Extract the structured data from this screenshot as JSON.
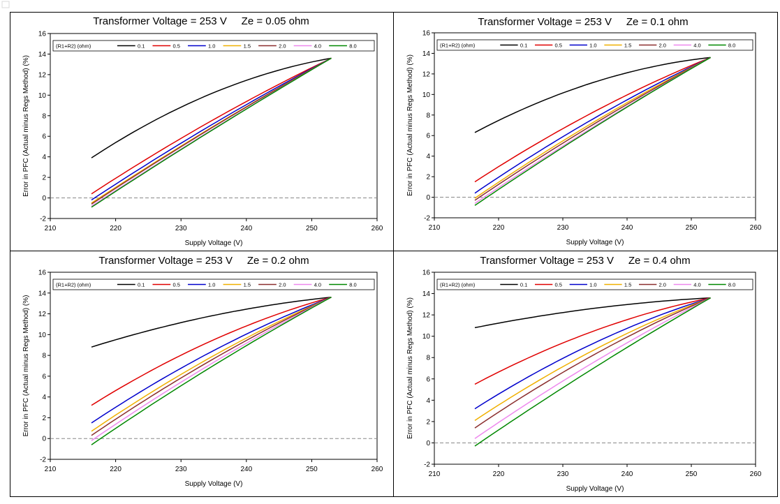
{
  "figure": {
    "xlabel": "Supply Voltage (V)",
    "ylabel": "Error in PFC (Actual minus Regs Method) (%)",
    "legend_title": "(R1+R2) (ohm)",
    "xlim": [
      210,
      260
    ],
    "ylim": [
      -2,
      16
    ],
    "x_ticks": [
      210,
      220,
      230,
      240,
      250,
      260
    ],
    "y_ticks": [
      -2,
      0,
      2,
      4,
      6,
      8,
      10,
      12,
      14,
      16
    ],
    "series_colors": {
      "0.1": "#000000",
      "0.5": "#e00000",
      "1.0": "#0000cc",
      "1.5": "#f0b000",
      "2.0": "#8b2e2e",
      "4.0": "#ee88ee",
      "8.0": "#008800"
    },
    "reference_line_color": "#888888"
  },
  "chart_data": [
    {
      "type": "line",
      "title": "Transformer Voltage = 253 V     Ze = 0.05 ohm",
      "xlabel": "Supply Voltage (V)",
      "ylabel": "Error in PFC (Actual minus Regs Method) (%)",
      "xlim": [
        210,
        260
      ],
      "ylim": [
        -2,
        16
      ],
      "x_start": 216.3,
      "x_end": 253,
      "legend_title": "(R1+R2) (ohm)",
      "series": [
        {
          "name": "0.1",
          "start": 3.9,
          "end": 13.6,
          "curve": 1.4
        },
        {
          "name": "0.5",
          "start": 0.4,
          "end": 13.6,
          "curve": 0.5
        },
        {
          "name": "1.0",
          "start": -0.2,
          "end": 13.6,
          "curve": 0.4
        },
        {
          "name": "1.5",
          "start": -0.5,
          "end": 13.6,
          "curve": 0.3
        },
        {
          "name": "2.0",
          "start": -0.6,
          "end": 13.6,
          "curve": 0.3
        },
        {
          "name": "4.0",
          "start": -0.8,
          "end": 13.6,
          "curve": 0.2
        },
        {
          "name": "8.0",
          "start": -0.9,
          "end": 13.6,
          "curve": 0.2
        }
      ]
    },
    {
      "type": "line",
      "title": "Transformer Voltage = 253 V     Ze = 0.1 ohm",
      "xlabel": "Supply Voltage (V)",
      "ylabel": "Error in PFC (Actual minus Regs Method) (%)",
      "xlim": [
        210,
        260
      ],
      "ylim": [
        -2,
        16
      ],
      "x_start": 216.3,
      "x_end": 253,
      "legend_title": "(R1+R2) (ohm)",
      "series": [
        {
          "name": "0.1",
          "start": 6.3,
          "end": 13.6,
          "curve": 1.2
        },
        {
          "name": "0.5",
          "start": 1.5,
          "end": 13.6,
          "curve": 0.7
        },
        {
          "name": "1.0",
          "start": 0.4,
          "end": 13.6,
          "curve": 0.6
        },
        {
          "name": "1.5",
          "start": -0.1,
          "end": 13.6,
          "curve": 0.5
        },
        {
          "name": "2.0",
          "start": -0.3,
          "end": 13.6,
          "curve": 0.4
        },
        {
          "name": "4.0",
          "start": -0.6,
          "end": 13.6,
          "curve": 0.3
        },
        {
          "name": "8.0",
          "start": -0.8,
          "end": 13.6,
          "curve": 0.3
        }
      ]
    },
    {
      "type": "line",
      "title": "Transformer Voltage = 253 V     Ze = 0.2 ohm",
      "xlabel": "Supply Voltage (V)",
      "ylabel": "Error in PFC (Actual minus Regs Method) (%)",
      "xlim": [
        210,
        260
      ],
      "ylim": [
        -2,
        16
      ],
      "x_start": 216.3,
      "x_end": 253,
      "legend_title": "(R1+R2) (ohm)",
      "series": [
        {
          "name": "0.1",
          "start": 8.8,
          "end": 13.6,
          "curve": 0.6
        },
        {
          "name": "0.5",
          "start": 3.2,
          "end": 13.6,
          "curve": 1.0
        },
        {
          "name": "1.0",
          "start": 1.5,
          "end": 13.6,
          "curve": 0.8
        },
        {
          "name": "1.5",
          "start": 0.7,
          "end": 13.6,
          "curve": 0.7
        },
        {
          "name": "2.0",
          "start": 0.3,
          "end": 13.6,
          "curve": 0.6
        },
        {
          "name": "4.0",
          "start": -0.2,
          "end": 13.6,
          "curve": 0.5
        },
        {
          "name": "8.0",
          "start": -0.6,
          "end": 13.6,
          "curve": 0.4
        }
      ]
    },
    {
      "type": "line",
      "title": "Transformer Voltage = 253 V     Ze = 0.4 ohm",
      "xlabel": "Supply Voltage (V)",
      "ylabel": "Error in PFC (Actual minus Regs Method) (%)",
      "xlim": [
        210,
        260
      ],
      "ylim": [
        -2,
        16
      ],
      "x_start": 216.3,
      "x_end": 253,
      "legend_title": "(R1+R2) (ohm)",
      "series": [
        {
          "name": "0.1",
          "start": 10.8,
          "end": 13.6,
          "curve": 0.4
        },
        {
          "name": "0.5",
          "start": 5.5,
          "end": 13.6,
          "curve": 0.9
        },
        {
          "name": "1.0",
          "start": 3.2,
          "end": 13.6,
          "curve": 0.9
        },
        {
          "name": "1.5",
          "start": 2.1,
          "end": 13.6,
          "curve": 0.8
        },
        {
          "name": "2.0",
          "start": 1.4,
          "end": 13.6,
          "curve": 0.7
        },
        {
          "name": "4.0",
          "start": 0.4,
          "end": 13.6,
          "curve": 0.5
        },
        {
          "name": "8.0",
          "start": -0.3,
          "end": 13.6,
          "curve": 0.3
        }
      ]
    }
  ]
}
